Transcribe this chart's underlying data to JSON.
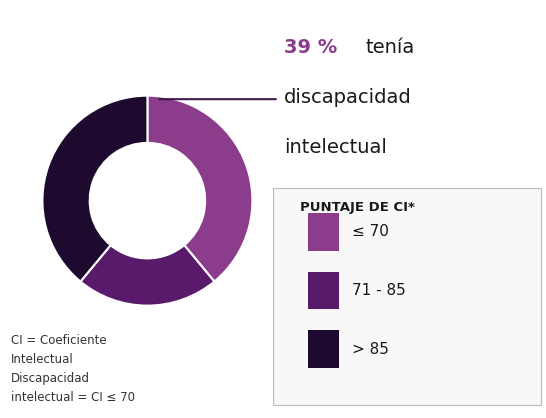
{
  "slices": [
    39,
    22,
    39
  ],
  "colors": [
    "#8b3d8b",
    "#5a1a6b",
    "#1e0a2e"
  ],
  "labels": [
    "≤ 70",
    "71 - 85",
    "> 85"
  ],
  "annotation_pct": "39 %",
  "annotation_text": "tenía\ndiscapacidad\nintelectual",
  "legend_title": "PUNTAJE DE CI*",
  "footnote": "CI = Coeficiente\nIntelectual\nDiscapacidad\nintelectual = CI ≤ 70",
  "bg_color": "#ffffff",
  "donut_width": 0.45,
  "startangle": 90
}
